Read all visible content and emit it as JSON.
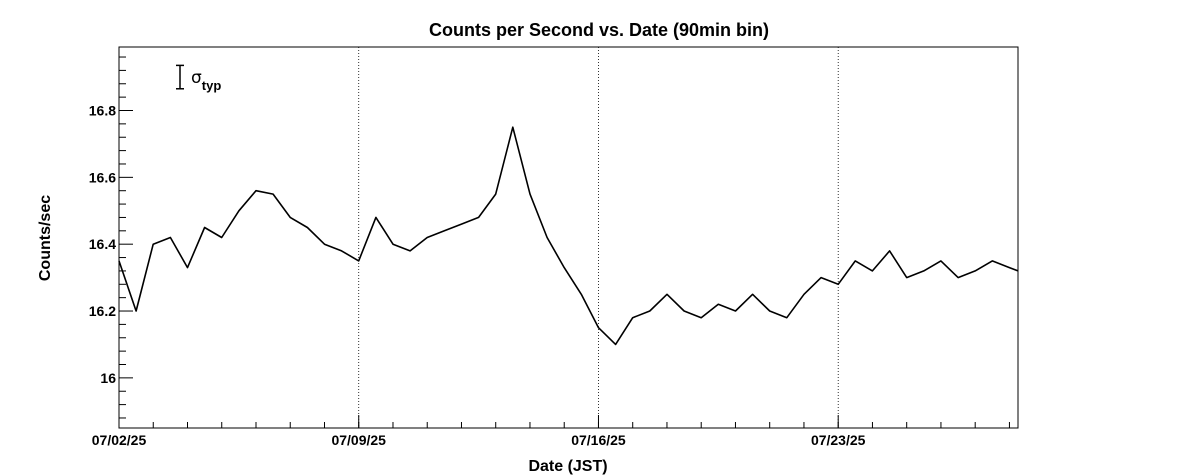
{
  "chart_data": {
    "type": "line",
    "title": "Counts per Second vs. Date (90min bin)",
    "xlabel": "Date (JST)",
    "ylabel": "Counts/sec",
    "ylim": [
      15.85,
      16.99
    ],
    "xlim": [
      "2025-07-02 00:00",
      "2025-07-28 06:00"
    ],
    "x_tick_labels": [
      "07/02/25",
      "07/09/25",
      "07/16/25",
      "07/23/25"
    ],
    "x_tick_dates": [
      "2025-07-02",
      "2025-07-09",
      "2025-07-16",
      "2025-07-23"
    ],
    "y_ticks": [
      16,
      16.2,
      16.4,
      16.6,
      16.8
    ],
    "y_tick_labels": [
      "16",
      "16.2",
      "16.4",
      "16.6",
      "16.8"
    ],
    "grid": "vertical dotted at major x ticks",
    "legend": "none",
    "annotation": {
      "symbol": "σ",
      "subscript": "typ",
      "error_bar_halfwidth": 0.035
    },
    "line_color": "#000000",
    "series": [
      {
        "x": [
          "2025-07-02 00:00",
          "2025-07-02 12:00",
          "2025-07-03 00:00",
          "2025-07-03 12:00",
          "2025-07-04 00:00",
          "2025-07-04 12:00",
          "2025-07-05 00:00",
          "2025-07-05 12:00",
          "2025-07-06 00:00",
          "2025-07-06 12:00",
          "2025-07-07 00:00",
          "2025-07-07 12:00",
          "2025-07-08 00:00",
          "2025-07-08 12:00",
          "2025-07-09 00:00",
          "2025-07-09 12:00",
          "2025-07-10 00:00",
          "2025-07-10 12:00",
          "2025-07-11 00:00",
          "2025-07-11 12:00",
          "2025-07-12 00:00",
          "2025-07-12 12:00",
          "2025-07-13 00:00",
          "2025-07-13 12:00",
          "2025-07-14 00:00",
          "2025-07-14 12:00",
          "2025-07-15 00:00",
          "2025-07-15 12:00",
          "2025-07-16 00:00",
          "2025-07-16 12:00",
          "2025-07-17 00:00",
          "2025-07-17 12:00",
          "2025-07-18 00:00",
          "2025-07-18 12:00",
          "2025-07-19 00:00",
          "2025-07-19 12:00",
          "2025-07-20 00:00",
          "2025-07-20 12:00",
          "2025-07-21 00:00",
          "2025-07-21 12:00",
          "2025-07-22 00:00",
          "2025-07-22 12:00",
          "2025-07-23 00:00",
          "2025-07-23 12:00",
          "2025-07-24 00:00",
          "2025-07-24 12:00",
          "2025-07-25 00:00",
          "2025-07-25 12:00",
          "2025-07-26 00:00",
          "2025-07-26 12:00",
          "2025-07-27 00:00",
          "2025-07-27 12:00",
          "2025-07-28 00:00",
          "2025-07-28 06:00"
        ],
        "values": [
          16.35,
          16.2,
          16.4,
          16.42,
          16.33,
          16.45,
          16.42,
          16.5,
          16.56,
          16.55,
          16.48,
          16.45,
          16.4,
          16.38,
          16.35,
          16.48,
          16.4,
          16.38,
          16.42,
          16.44,
          16.46,
          16.48,
          16.55,
          16.75,
          16.55,
          16.42,
          16.33,
          16.25,
          16.15,
          16.1,
          16.18,
          16.2,
          16.25,
          16.2,
          16.18,
          16.22,
          16.2,
          16.25,
          16.2,
          16.18,
          16.25,
          16.3,
          16.28,
          16.35,
          16.32,
          16.38,
          16.3,
          16.32,
          16.35,
          16.3,
          16.32,
          16.35,
          16.33,
          16.32
        ]
      }
    ]
  }
}
